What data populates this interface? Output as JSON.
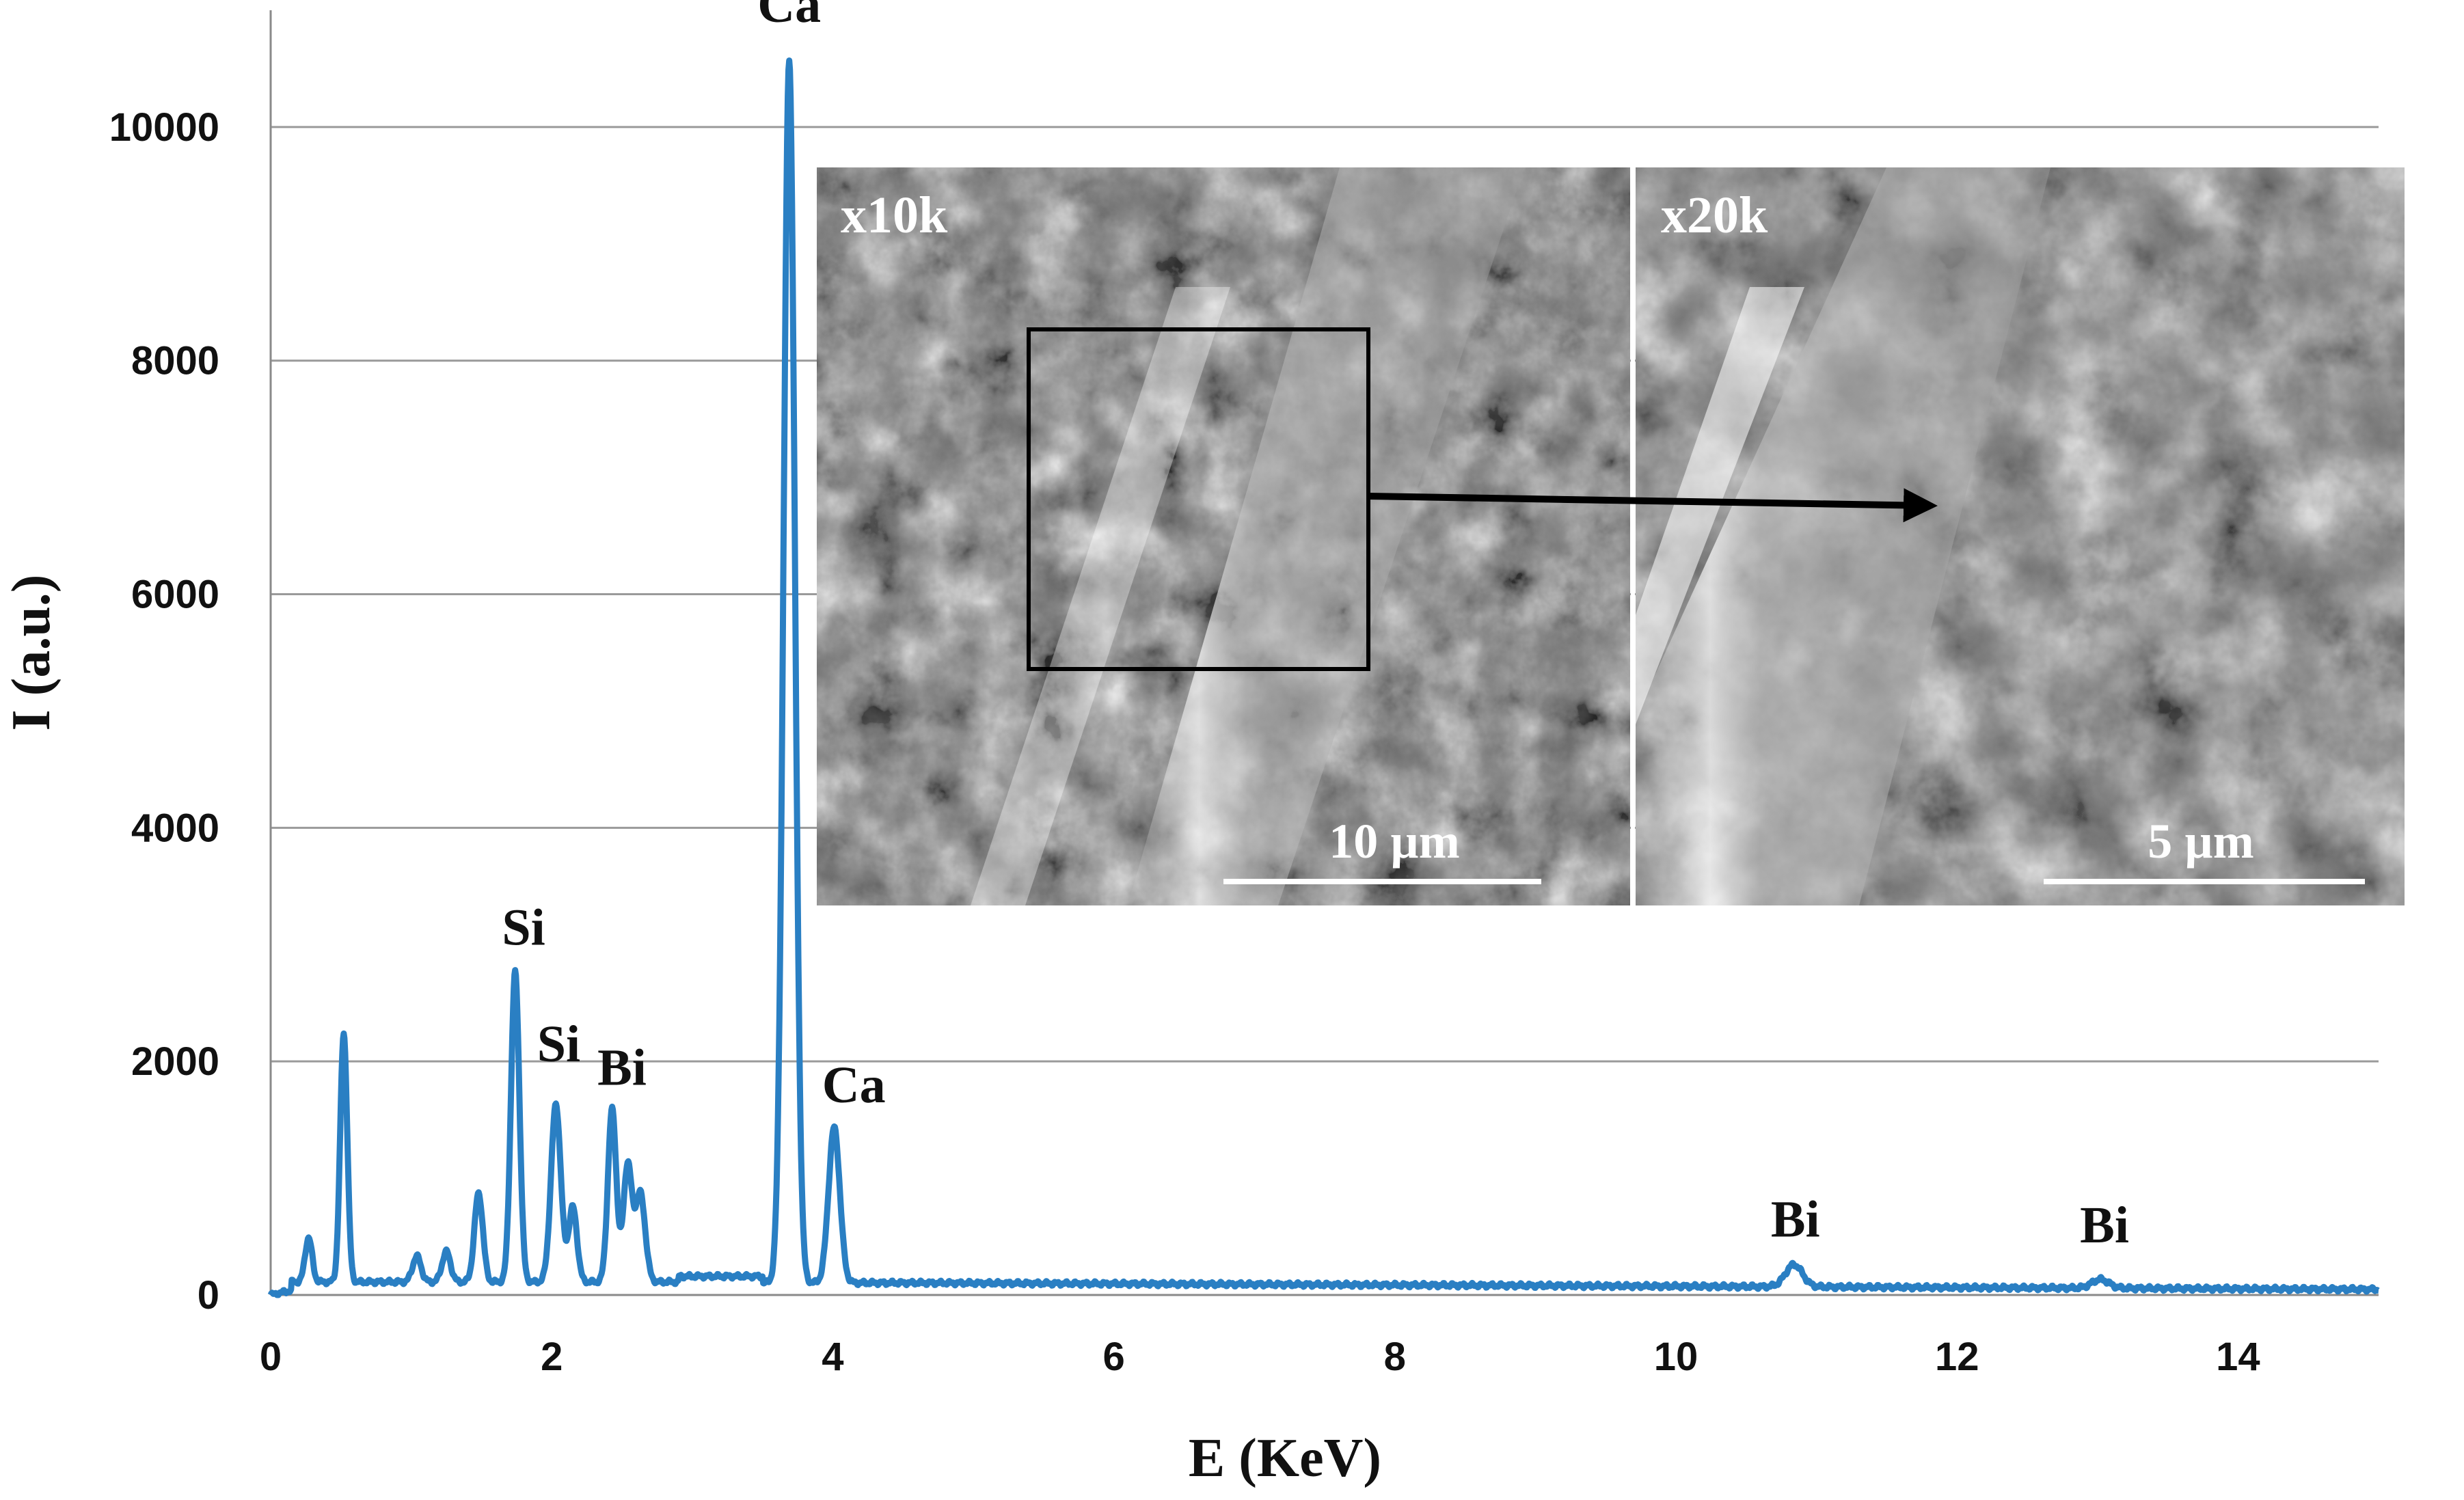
{
  "chart_data": {
    "type": "line",
    "xlabel": "E (KeV)",
    "ylabel": "I (a.u.)",
    "xlim": [
      0,
      15
    ],
    "ylim": [
      0,
      11000
    ],
    "x_ticks": [
      0,
      2,
      4,
      6,
      8,
      10,
      12,
      14
    ],
    "y_ticks": [
      0,
      2000,
      4000,
      6000,
      8000,
      10000
    ],
    "grid": "horizontal",
    "line_color": "#2a7fc3",
    "baseline": 80,
    "peaks": [
      {
        "x": 0.27,
        "y": 380,
        "w": 0.025
      },
      {
        "x": 0.52,
        "y": 2130,
        "w": 0.025
      },
      {
        "x": 1.04,
        "y": 220,
        "w": 0.03
      },
      {
        "x": 1.25,
        "y": 260,
        "w": 0.03
      },
      {
        "x": 1.48,
        "y": 760,
        "w": 0.03
      },
      {
        "x": 1.74,
        "y": 2650,
        "w": 0.03
      },
      {
        "x": 2.03,
        "y": 1520,
        "w": 0.035
      },
      {
        "x": 2.15,
        "y": 640,
        "w": 0.03
      },
      {
        "x": 2.43,
        "y": 1480,
        "w": 0.03
      },
      {
        "x": 2.54,
        "y": 1000,
        "w": 0.03
      },
      {
        "x": 2.63,
        "y": 760,
        "w": 0.035
      },
      {
        "x": 3.69,
        "y": 10480,
        "w": 0.04
      },
      {
        "x": 4.01,
        "y": 1330,
        "w": 0.04
      },
      {
        "x": 10.84,
        "y": 190,
        "w": 0.06
      },
      {
        "x": 13.02,
        "y": 75,
        "w": 0.06
      }
    ],
    "peak_labels": [
      {
        "text": "Ca",
        "x": 3.69,
        "y": 10900
      },
      {
        "text": "Si",
        "x": 1.8,
        "y": 3000
      },
      {
        "text": "Si",
        "x": 2.05,
        "y": 2000
      },
      {
        "text": "Bi",
        "x": 2.5,
        "y": 1800
      },
      {
        "text": "Ca",
        "x": 4.15,
        "y": 1650
      },
      {
        "text": "Bi",
        "x": 10.85,
        "y": 500
      },
      {
        "text": "Bi",
        "x": 13.05,
        "y": 450
      }
    ]
  },
  "inset": {
    "left_panel": {
      "magnification": "x10k",
      "scale_bar": "10 µm"
    },
    "right_panel": {
      "magnification": "x20k",
      "scale_bar": "5 µm"
    }
  }
}
